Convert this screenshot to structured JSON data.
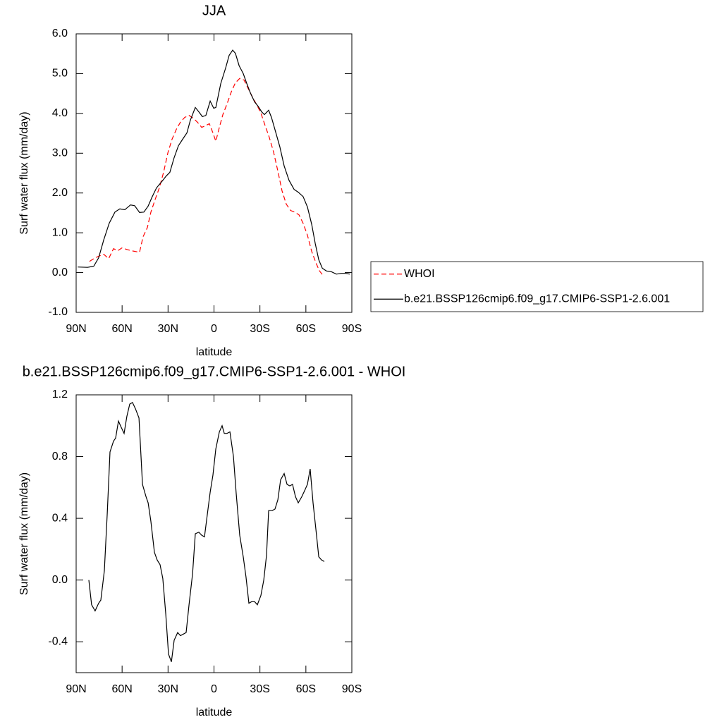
{
  "chart_data": [
    {
      "type": "line",
      "title": "JJA",
      "xlabel": "latitude",
      "ylabel": "Surf water flux (mm/day)",
      "xlim": [
        90,
        -90
      ],
      "xticks": [
        {
          "value": 90,
          "label": "90N"
        },
        {
          "value": 60,
          "label": "60N"
        },
        {
          "value": 30,
          "label": "30N"
        },
        0,
        {
          "value": -30,
          "label": "30S"
        },
        {
          "value": -60,
          "label": "60S"
        },
        {
          "value": -90,
          "label": "90S"
        }
      ],
      "ylim": [
        -1,
        6
      ],
      "yticks": [
        {
          "value": -1,
          "label": "-1.0"
        },
        {
          "value": 0,
          "label": "0.0"
        },
        {
          "value": 1,
          "label": "1.0"
        },
        {
          "value": 2,
          "label": "2.0"
        },
        {
          "value": 3,
          "label": "3.0"
        },
        {
          "value": 4,
          "label": "4.0"
        },
        {
          "value": 5,
          "label": "5.0"
        },
        {
          "value": 6,
          "label": "6.0"
        }
      ],
      "legend": "right",
      "series": [
        {
          "name": "WHOI",
          "color": "#ff0000",
          "dash": true,
          "x": [
            81.3,
            78.5,
            75.3,
            72,
            68.8,
            65.6,
            62.8,
            60.1,
            56.9,
            54.1,
            51.3,
            48.6,
            46.3,
            43.5,
            41.2,
            38.4,
            35.7,
            32.9,
            30.1,
            27.4,
            24.6,
            21.9,
            19.1,
            16.3,
            13.6,
            10.8,
            8.0,
            5.7,
            3.0,
            0.7,
            -1.2,
            -3.5,
            -5.8,
            -8.5,
            -11.3,
            -14,
            -16.8,
            -19.6,
            -22.3,
            -25.1,
            -27.9,
            -30.6,
            -33.4,
            -36.1,
            -38.9,
            -41.7,
            -44.4,
            -47.2,
            -50,
            -52.7,
            -55.5,
            -58.2,
            -61,
            -63.8,
            -66.5,
            -68.8,
            -70.7
          ],
          "values": [
            0.28,
            0.35,
            0.41,
            0.46,
            0.35,
            0.6,
            0.55,
            0.62,
            0.58,
            0.55,
            0.53,
            0.51,
            0.9,
            1.13,
            1.52,
            1.84,
            2.13,
            2.52,
            3.01,
            3.35,
            3.6,
            3.78,
            3.9,
            3.95,
            3.88,
            3.78,
            3.65,
            3.69,
            3.74,
            3.51,
            3.3,
            3.65,
            3.97,
            4.24,
            4.54,
            4.77,
            4.88,
            4.84,
            4.63,
            4.41,
            4.22,
            4.01,
            3.69,
            3.4,
            3.03,
            2.55,
            2.06,
            1.72,
            1.56,
            1.52,
            1.45,
            1.24,
            0.94,
            0.53,
            0.25,
            0.05,
            -0.05
          ]
        },
        {
          "name": "b.e21.BSSP126cmip6.f09_g17.CMIP6-SSP1-2.6.001",
          "color": "#000000",
          "dash": false,
          "x": [
            89,
            82.6,
            78.5,
            75.3,
            72,
            68.4,
            64.7,
            61.5,
            58.2,
            54.5,
            51.8,
            48.6,
            45.8,
            43,
            40.3,
            37.5,
            33.8,
            31.1,
            28.8,
            26,
            23.2,
            20.5,
            17.7,
            15.4,
            12.2,
            9.9,
            7.6,
            5.3,
            2.5,
            0.2,
            -1.2,
            -4.4,
            -7.6,
            -9.9,
            -12.2,
            -14,
            -16.4,
            -19.1,
            -21.4,
            -23.7,
            -26.5,
            -28.8,
            -31.1,
            -32.9,
            -35.7,
            -37.5,
            -40.3,
            -43,
            -45.8,
            -49,
            -52.3,
            -55,
            -58.2,
            -61,
            -63.8,
            -66.1,
            -68.4,
            -70.7,
            -73.4,
            -76.7,
            -79.9,
            -83.1,
            -85.9,
            -88.6
          ],
          "values": [
            0.14,
            0.13,
            0.16,
            0.37,
            0.82,
            1.24,
            1.52,
            1.6,
            1.58,
            1.7,
            1.68,
            1.51,
            1.52,
            1.67,
            1.91,
            2.13,
            2.3,
            2.43,
            2.52,
            2.89,
            3.19,
            3.35,
            3.51,
            3.83,
            4.15,
            4.04,
            3.92,
            3.95,
            4.31,
            4.13,
            4.15,
            4.75,
            5.14,
            5.46,
            5.59,
            5.51,
            5.2,
            5.0,
            4.75,
            4.52,
            4.29,
            4.18,
            4.04,
            3.97,
            4.08,
            3.9,
            3.53,
            3.16,
            2.68,
            2.32,
            2.09,
            2.02,
            1.91,
            1.65,
            1.21,
            0.73,
            0.32,
            0.11,
            0.04,
            0.02,
            -0.04,
            -0.02,
            -0.02,
            -0.04
          ]
        }
      ]
    },
    {
      "type": "line",
      "title": "b.e21.BSSP126cmip6.f09_g17.CMIP6-SSP1-2.6.001 - WHOI",
      "xlabel": "latitude",
      "ylabel": "Surf water flux (mm/day)",
      "xlim": [
        90,
        -90
      ],
      "xticks": [
        {
          "value": 90,
          "label": "90N"
        },
        {
          "value": 60,
          "label": "60N"
        },
        {
          "value": 30,
          "label": "30N"
        },
        0,
        {
          "value": -30,
          "label": "30S"
        },
        {
          "value": -60,
          "label": "60S"
        },
        {
          "value": -90,
          "label": "90S"
        }
      ],
      "ylim": [
        -0.6,
        1.2
      ],
      "yticks": [
        -0.4,
        {
          "value": 0,
          "label": "0.0"
        },
        0.4,
        0.8,
        1.2
      ],
      "series": [
        {
          "color": "#000000",
          "dash": false,
          "x": [
            81.7,
            79.9,
            77.6,
            75.3,
            73.9,
            71.6,
            69.7,
            67.9,
            65.6,
            64.2,
            62.4,
            60.6,
            58.7,
            56.9,
            55,
            53.2,
            51.3,
            49,
            46.7,
            44.4,
            43,
            41.2,
            38.9,
            37.1,
            35.2,
            33.4,
            31.5,
            29.7,
            27.8,
            26,
            23.7,
            21.9,
            20,
            18.2,
            16.3,
            14,
            12.2,
            9.9,
            8,
            6.2,
            4.4,
            2.5,
            0.7,
            -1.2,
            -3.5,
            -5.3,
            -6.7,
            -8.5,
            -10.4,
            -12.7,
            -14.5,
            -16.8,
            -19.1,
            -20.9,
            -22.8,
            -24.6,
            -26.5,
            -28.3,
            -30.6,
            -32.5,
            -34.3,
            -35.7,
            -38,
            -39.8,
            -41.7,
            -43.5,
            -45.8,
            -47.7,
            -49.5,
            -51.3,
            -53.2,
            -55,
            -57.3,
            -59.2,
            -61,
            -62.8,
            -64.7,
            -66.5,
            -68.4,
            -70.2,
            -72
          ],
          "values": [
            0.0,
            -0.16,
            -0.2,
            -0.15,
            -0.13,
            0.06,
            0.43,
            0.83,
            0.9,
            0.92,
            1.03,
            0.99,
            0.95,
            1.06,
            1.14,
            1.15,
            1.11,
            1.05,
            0.62,
            0.54,
            0.5,
            0.38,
            0.18,
            0.13,
            0.1,
            0.01,
            -0.22,
            -0.48,
            -0.53,
            -0.39,
            -0.34,
            -0.36,
            -0.35,
            -0.34,
            -0.16,
            0.04,
            0.3,
            0.31,
            0.29,
            0.28,
            0.42,
            0.57,
            0.68,
            0.85,
            0.96,
            1.0,
            0.95,
            0.95,
            0.96,
            0.8,
            0.56,
            0.29,
            0.15,
            0.02,
            -0.15,
            -0.14,
            -0.14,
            -0.16,
            -0.1,
            0.0,
            0.16,
            0.45,
            0.45,
            0.46,
            0.52,
            0.65,
            0.69,
            0.62,
            0.61,
            0.62,
            0.54,
            0.5,
            0.54,
            0.58,
            0.62,
            0.72,
            0.5,
            0.33,
            0.15,
            0.13,
            0.12
          ]
        }
      ]
    }
  ]
}
